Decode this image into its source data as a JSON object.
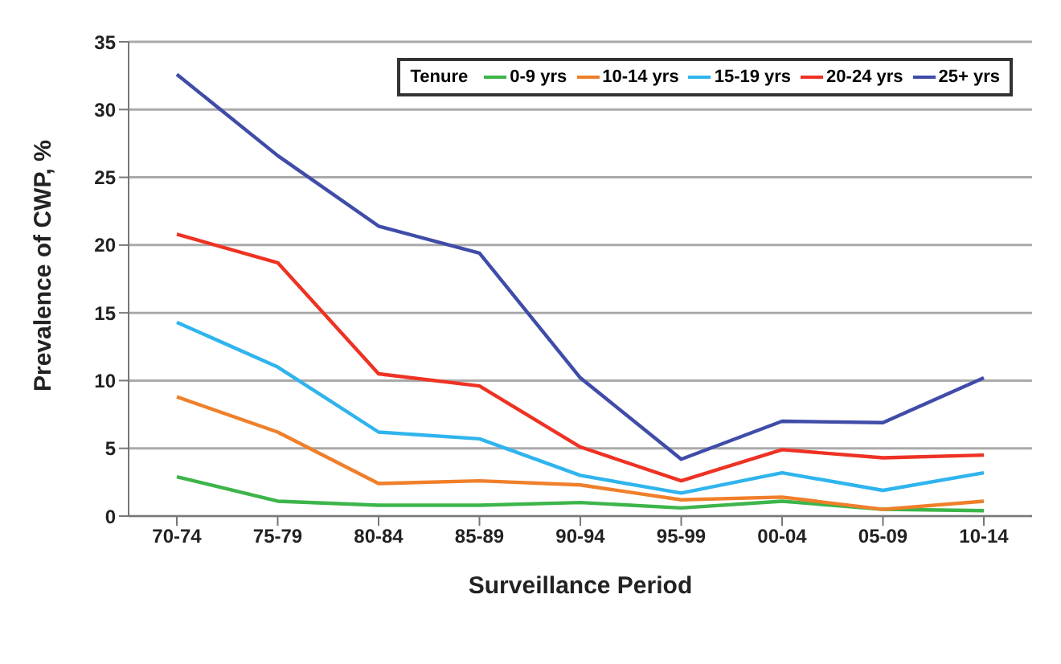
{
  "chart_data": {
    "type": "line",
    "xlabel": "Surveillance Period",
    "ylabel": "Prevalence of CWP, %",
    "categories": [
      "70-74",
      "75-79",
      "80-84",
      "85-89",
      "90-94",
      "95-99",
      "00-04",
      "05-09",
      "10-14"
    ],
    "series": [
      {
        "name": "0-9 yrs",
        "color": "#3cb54a",
        "values": [
          2.9,
          1.1,
          0.8,
          0.8,
          1.0,
          0.6,
          1.1,
          0.5,
          0.4
        ]
      },
      {
        "name": "10-14 yrs",
        "color": "#f07f2a",
        "values": [
          8.8,
          6.2,
          2.4,
          2.6,
          2.3,
          1.2,
          1.4,
          0.5,
          1.1
        ]
      },
      {
        "name": "15-19 yrs",
        "color": "#2fb4ee",
        "values": [
          14.3,
          11.0,
          6.2,
          5.7,
          3.0,
          1.7,
          3.2,
          1.9,
          3.2
        ]
      },
      {
        "name": "20-24 yrs",
        "color": "#ee3224",
        "values": [
          20.8,
          18.7,
          10.5,
          9.6,
          5.1,
          2.6,
          4.9,
          4.3,
          4.5
        ]
      },
      {
        "name": "25+ yrs",
        "color": "#3f4ca8",
        "values": [
          32.6,
          26.6,
          21.4,
          19.4,
          10.2,
          4.2,
          7.0,
          6.9,
          10.2
        ]
      }
    ],
    "legend_title": "Tenure",
    "legend": "top right",
    "ylim": [
      0,
      35
    ],
    "yticks": [
      0,
      5,
      10,
      15,
      20,
      25,
      30,
      35
    ],
    "grid": "y",
    "marker": "none",
    "line_style": "solid"
  }
}
